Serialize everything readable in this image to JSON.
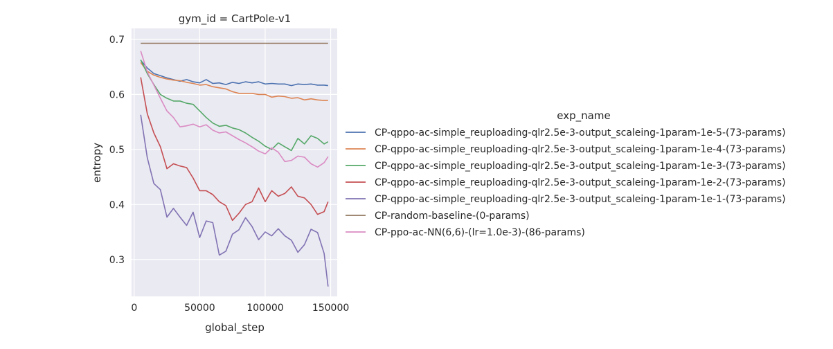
{
  "chart_data": {
    "type": "line",
    "title": "gym_id = CartPole-v1",
    "xlabel": "global_step",
    "ylabel": "entropy",
    "xlim": [
      -2000,
      155000
    ],
    "ylim": [
      0.233,
      0.72
    ],
    "xticks": [
      0,
      50000,
      100000,
      150000
    ],
    "xtick_labels": [
      "0",
      "50000",
      "100000",
      "150000"
    ],
    "yticks": [
      0.3,
      0.4,
      0.5,
      0.6,
      0.7
    ],
    "ytick_labels": [
      "0.3",
      "0.4",
      "0.5",
      "0.6",
      "0.7"
    ],
    "grid": true,
    "legend_title": "exp_name",
    "legend_position": "right",
    "x": [
      5000,
      10000,
      15000,
      20000,
      25000,
      30000,
      35000,
      40000,
      45000,
      50000,
      55000,
      60000,
      65000,
      70000,
      75000,
      80000,
      85000,
      90000,
      95000,
      100000,
      105000,
      110000,
      115000,
      120000,
      125000,
      130000,
      135000,
      140000,
      145000,
      148000
    ],
    "series": [
      {
        "name": "CP-qppo-ac-simple_reuploading-qlr2.5e-3-output_scaleing-1param-1e-5-(73-params)",
        "color": "#4c72b0",
        "values": [
          0.662,
          0.648,
          0.638,
          0.634,
          0.63,
          0.627,
          0.624,
          0.627,
          0.623,
          0.621,
          0.627,
          0.62,
          0.621,
          0.618,
          0.622,
          0.62,
          0.623,
          0.621,
          0.623,
          0.619,
          0.62,
          0.619,
          0.619,
          0.616,
          0.619,
          0.618,
          0.619,
          0.617,
          0.617,
          0.616
        ]
      },
      {
        "name": "CP-qppo-ac-simple_reuploading-qlr2.5e-3-output_scaleing-1param-1e-4-(73-params)",
        "color": "#dd8452",
        "values": [
          0.658,
          0.642,
          0.635,
          0.631,
          0.628,
          0.626,
          0.625,
          0.622,
          0.62,
          0.617,
          0.618,
          0.614,
          0.612,
          0.61,
          0.605,
          0.602,
          0.602,
          0.602,
          0.6,
          0.6,
          0.595,
          0.597,
          0.596,
          0.593,
          0.594,
          0.59,
          0.592,
          0.59,
          0.589,
          0.589
        ]
      },
      {
        "name": "CP-qppo-ac-simple_reuploading-qlr2.5e-3-output_scaleing-1param-1e-3-(73-params)",
        "color": "#55a868",
        "values": [
          0.663,
          0.638,
          0.618,
          0.6,
          0.593,
          0.588,
          0.588,
          0.584,
          0.582,
          0.57,
          0.558,
          0.548,
          0.542,
          0.544,
          0.539,
          0.536,
          0.53,
          0.522,
          0.515,
          0.506,
          0.5,
          0.512,
          0.505,
          0.498,
          0.52,
          0.51,
          0.525,
          0.52,
          0.51,
          0.514
        ]
      },
      {
        "name": "CP-qppo-ac-simple_reuploading-qlr2.5e-3-output_scaleing-1param-1e-2-(73-params)",
        "color": "#c44e52",
        "values": [
          0.631,
          0.565,
          0.53,
          0.505,
          0.465,
          0.474,
          0.47,
          0.467,
          0.448,
          0.425,
          0.425,
          0.418,
          0.405,
          0.398,
          0.371,
          0.384,
          0.4,
          0.405,
          0.43,
          0.405,
          0.425,
          0.415,
          0.42,
          0.432,
          0.415,
          0.412,
          0.4,
          0.382,
          0.387,
          0.405
        ]
      },
      {
        "name": "CP-qppo-ac-simple_reuploading-qlr2.5e-3-output_scaleing-1param-1e-1-(73-params)",
        "color": "#8172b3",
        "values": [
          0.563,
          0.485,
          0.438,
          0.427,
          0.377,
          0.393,
          0.377,
          0.362,
          0.386,
          0.34,
          0.37,
          0.367,
          0.308,
          0.315,
          0.346,
          0.354,
          0.376,
          0.36,
          0.336,
          0.35,
          0.343,
          0.356,
          0.343,
          0.335,
          0.313,
          0.327,
          0.355,
          0.349,
          0.311,
          0.251
        ]
      },
      {
        "name": "CP-random-baseline-(0-params)",
        "color": "#937860",
        "values": [
          0.693,
          0.693,
          0.693,
          0.693,
          0.693,
          0.693,
          0.693,
          0.693,
          0.693,
          0.693,
          0.693,
          0.693,
          0.693,
          0.693,
          0.693,
          0.693,
          0.693,
          0.693,
          0.693,
          0.693,
          0.693,
          0.693,
          0.693,
          0.693,
          0.693,
          0.693,
          0.693,
          0.693,
          0.693,
          0.693
        ]
      },
      {
        "name": "CP-ppo-ac-NN(6,6)-(lr=1.0e-3)-(86-params)",
        "color": "#da8bc3",
        "values": [
          0.679,
          0.641,
          0.617,
          0.593,
          0.57,
          0.558,
          0.541,
          0.543,
          0.546,
          0.541,
          0.545,
          0.535,
          0.53,
          0.532,
          0.525,
          0.518,
          0.512,
          0.505,
          0.497,
          0.492,
          0.503,
          0.495,
          0.478,
          0.48,
          0.488,
          0.486,
          0.474,
          0.468,
          0.476,
          0.487
        ]
      }
    ]
  }
}
